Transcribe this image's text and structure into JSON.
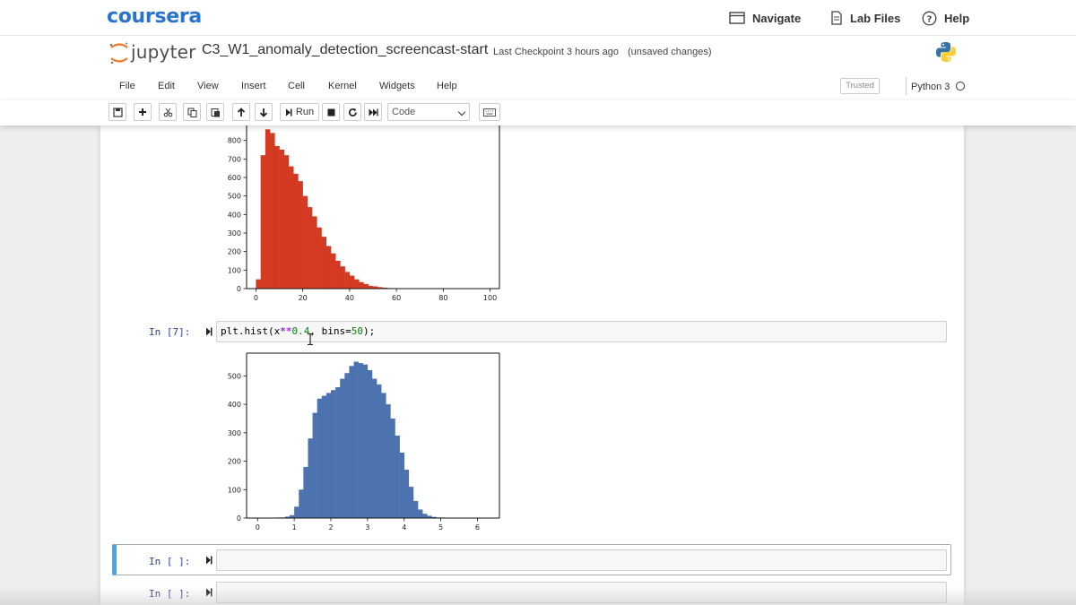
{
  "coursera": {
    "logo": "coursera",
    "navigate_label": "Navigate",
    "lab_files_label": "Lab Files",
    "help_label": "Help"
  },
  "jupyter": {
    "logo_text": "jupyter",
    "notebook_title": "C3_W1_anomaly_detection_screencast-start",
    "checkpoint": "Last Checkpoint  3 hours ago",
    "unsaved": "(unsaved changes)",
    "trusted": "Trusted",
    "kernel": "Python 3"
  },
  "menu": [
    "File",
    "Edit",
    "View",
    "Insert",
    "Cell",
    "Kernel",
    "Widgets",
    "Help"
  ],
  "toolbar": {
    "run_label": "Run",
    "cell_type": "Code"
  },
  "cells": {
    "cell7_prompt": "In [7]:",
    "cell7_code_prefix": "plt.hist(x",
    "cell7_code_op": "**",
    "cell7_code_num1": "0.4",
    "cell7_code_mid": ", bins=",
    "cell7_code_num2": "50",
    "cell7_code_suffix": ");",
    "empty1_prompt": "In [ ]:",
    "empty2_prompt": "In [ ]:"
  },
  "chart_data": [
    {
      "type": "bar",
      "color": "#d43a22",
      "bin_start": 0,
      "bin_width": 2,
      "values": [
        50,
        720,
        860,
        840,
        770,
        750,
        720,
        660,
        620,
        580,
        500,
        440,
        390,
        330,
        280,
        230,
        190,
        150,
        120,
        90,
        70,
        50,
        35,
        25,
        15,
        12,
        8,
        5,
        3,
        2,
        2,
        1,
        1,
        1,
        0,
        0,
        0,
        0,
        0,
        0,
        0,
        0,
        0,
        0,
        0,
        0,
        0,
        0,
        0,
        1
      ],
      "xlim": [
        -4,
        104
      ],
      "ylim": [
        0,
        900
      ],
      "xticks": [
        0,
        20,
        40,
        60,
        80,
        100
      ],
      "yticks": [
        0,
        100,
        200,
        300,
        400,
        500,
        600,
        700,
        800
      ],
      "title": "",
      "xlabel": "",
      "ylabel": ""
    },
    {
      "type": "bar",
      "color": "#4c72b0",
      "bin_start": 0,
      "bin_width": 0.125,
      "values": [
        0,
        1,
        0,
        1,
        2,
        2,
        5,
        10,
        40,
        100,
        180,
        280,
        370,
        420,
        430,
        440,
        450,
        460,
        490,
        510,
        535,
        550,
        545,
        540,
        520,
        490,
        470,
        440,
        400,
        350,
        290,
        230,
        170,
        110,
        60,
        30,
        15,
        8,
        4,
        2,
        2,
        1,
        1,
        1,
        0,
        0,
        0,
        0,
        0,
        0
      ],
      "xlim": [
        -0.3,
        6.6
      ],
      "ylim": [
        0,
        580
      ],
      "xticks": [
        0,
        1,
        2,
        3,
        4,
        5,
        6
      ],
      "yticks": [
        0,
        100,
        200,
        300,
        400,
        500
      ],
      "title": "",
      "xlabel": "",
      "ylabel": ""
    }
  ]
}
